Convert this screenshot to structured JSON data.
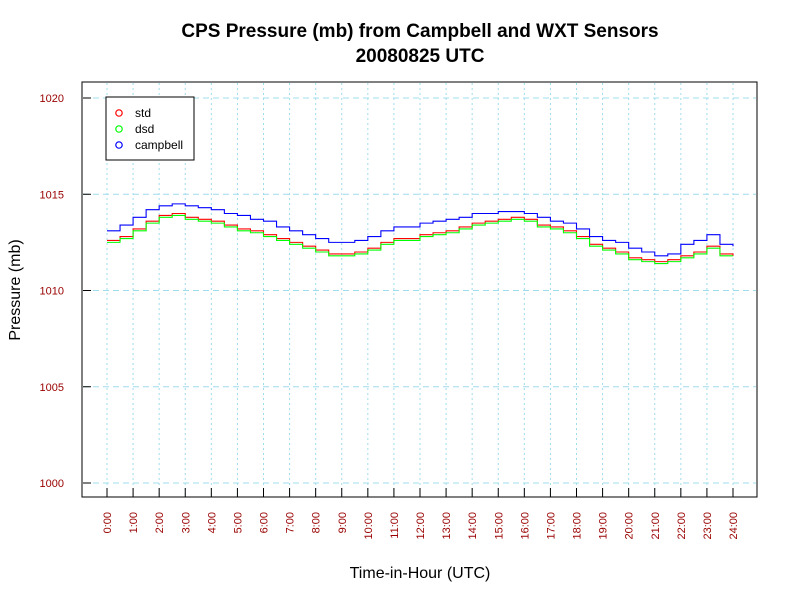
{
  "chart_data": {
    "type": "line",
    "title": "CPS Pressure (mb) from Campbell and WXT Sensors",
    "subtitle": "20080825  UTC",
    "xlabel": "Time-in-Hour (UTC)",
    "ylabel": "Pressure (mb)",
    "xlim": [
      0,
      24
    ],
    "ylim": [
      1000,
      1020
    ],
    "x_ticks": [
      "0:00",
      "1:00",
      "2:00",
      "3:00",
      "4:00",
      "5:00",
      "6:00",
      "7:00",
      "8:00",
      "9:00",
      "10:00",
      "11:00",
      "12:00",
      "13:00",
      "14:00",
      "15:00",
      "16:00",
      "17:00",
      "18:00",
      "19:00",
      "20:00",
      "21:00",
      "22:00",
      "23:00",
      "24:00"
    ],
    "y_ticks": [
      "1000",
      "1005",
      "1010",
      "1015",
      "1020"
    ],
    "grid": true,
    "legend_position": "top-left",
    "x": [
      0,
      0.5,
      1,
      1.5,
      2,
      2.5,
      3,
      3.5,
      4,
      4.5,
      5,
      5.5,
      6,
      6.5,
      7,
      7.5,
      8,
      8.5,
      9,
      9.5,
      10,
      10.5,
      11,
      11.5,
      12,
      12.5,
      13,
      13.5,
      14,
      14.5,
      15,
      15.5,
      16,
      16.5,
      17,
      17.5,
      18,
      18.5,
      19,
      19.5,
      20,
      20.5,
      21,
      21.5,
      22,
      22.5,
      23,
      23.5,
      24
    ],
    "series": [
      {
        "name": "std",
        "color": "#ff0000",
        "values": [
          1012.6,
          1012.8,
          1013.2,
          1013.6,
          1013.9,
          1014.0,
          1013.8,
          1013.7,
          1013.6,
          1013.4,
          1013.2,
          1013.1,
          1012.9,
          1012.7,
          1012.5,
          1012.3,
          1012.1,
          1011.9,
          1011.9,
          1012.0,
          1012.2,
          1012.5,
          1012.7,
          1012.7,
          1012.9,
          1013.0,
          1013.1,
          1013.3,
          1013.5,
          1013.6,
          1013.7,
          1013.8,
          1013.7,
          1013.4,
          1013.3,
          1013.1,
          1012.8,
          1012.4,
          1012.2,
          1012.0,
          1011.7,
          1011.6,
          1011.5,
          1011.6,
          1011.8,
          1012.0,
          1012.3,
          1011.9,
          1011.8
        ]
      },
      {
        "name": "dsd",
        "color": "#00ff00",
        "values": [
          1012.5,
          1012.7,
          1013.1,
          1013.5,
          1013.8,
          1013.9,
          1013.7,
          1013.6,
          1013.5,
          1013.3,
          1013.1,
          1013.0,
          1012.8,
          1012.6,
          1012.4,
          1012.2,
          1012.0,
          1011.8,
          1011.8,
          1011.9,
          1012.1,
          1012.4,
          1012.6,
          1012.6,
          1012.8,
          1012.9,
          1013.0,
          1013.2,
          1013.4,
          1013.5,
          1013.6,
          1013.7,
          1013.6,
          1013.3,
          1013.2,
          1013.0,
          1012.7,
          1012.3,
          1012.1,
          1011.9,
          1011.6,
          1011.5,
          1011.4,
          1011.5,
          1011.7,
          1011.9,
          1012.2,
          1011.8,
          1011.8
        ]
      },
      {
        "name": "campbell",
        "color": "#0000ff",
        "values": [
          1013.1,
          1013.4,
          1013.8,
          1014.2,
          1014.4,
          1014.5,
          1014.4,
          1014.3,
          1014.2,
          1014.0,
          1013.9,
          1013.7,
          1013.6,
          1013.3,
          1013.1,
          1012.9,
          1012.7,
          1012.5,
          1012.5,
          1012.6,
          1012.8,
          1013.1,
          1013.3,
          1013.3,
          1013.5,
          1013.6,
          1013.7,
          1013.8,
          1014.0,
          1014.0,
          1014.1,
          1014.1,
          1014.0,
          1013.8,
          1013.6,
          1013.5,
          1013.2,
          1012.8,
          1012.6,
          1012.5,
          1012.2,
          1012.0,
          1011.8,
          1011.9,
          1012.4,
          1012.6,
          1012.9,
          1012.4,
          1012.3
        ]
      }
    ]
  }
}
